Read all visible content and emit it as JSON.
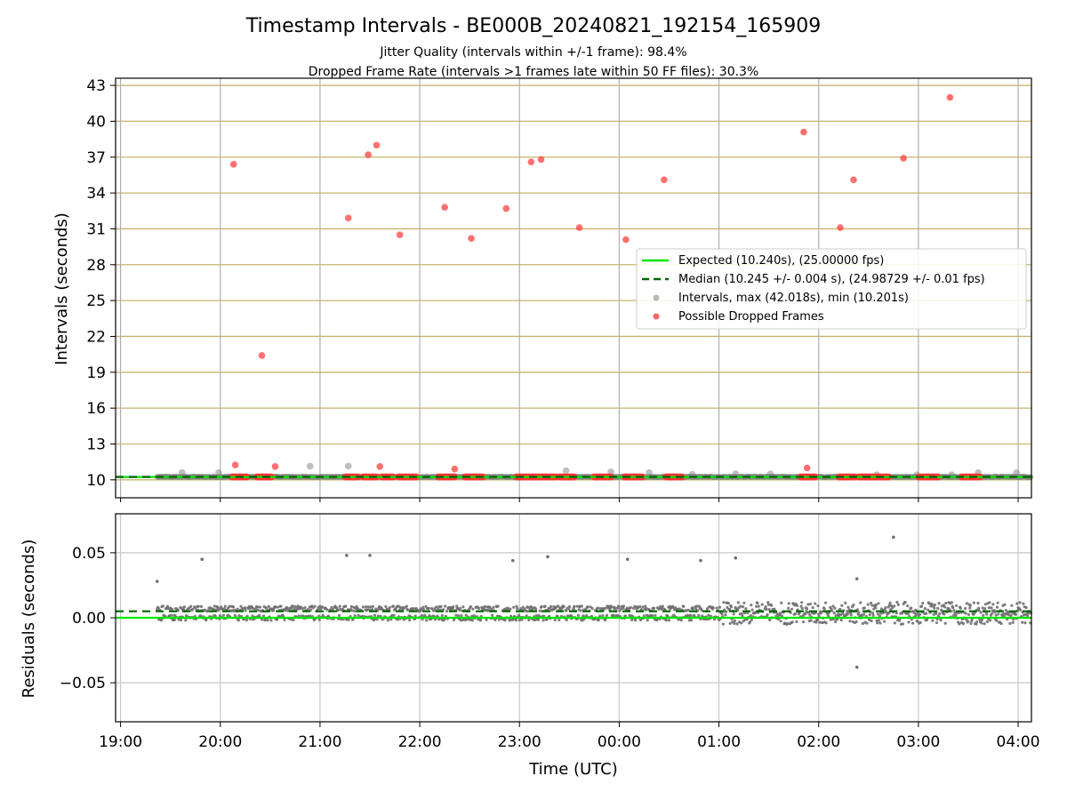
{
  "chart_data": [
    {
      "type": "scatter",
      "title": "Timestamp Intervals - BE000B_20240821_192154_165909",
      "subtitle_lines": [
        "Jitter Quality (intervals within +/-1 frame): 98.4%",
        "Dropped Frame Rate (intervals >1 frames late within 50 FF files): 30.3%"
      ],
      "xlabel": "",
      "ylabel": "Intervals (seconds)",
      "xlim": [
        "2024-08-21 18:57",
        "2024-08-22 04:08"
      ],
      "ylim": [
        8.5,
        43.6
      ],
      "yticks": [
        10,
        13,
        16,
        19,
        22,
        25,
        28,
        31,
        34,
        37,
        40,
        43
      ],
      "xticks": [
        "19:00",
        "20:00",
        "21:00",
        "22:00",
        "23:00",
        "00:00",
        "01:00",
        "02:00",
        "03:00",
        "04:00"
      ],
      "grid": true,
      "legend_position": "center-right",
      "legend": [
        "Expected (10.240s), (25.00000 fps)",
        "Median (10.245 +/- 0.004 s), (24.98729 +/- 0.01 fps)",
        "Intervals, max (42.018s), min (10.201s)",
        "Possible Dropped Frames"
      ],
      "expected_value": 10.24,
      "median_value": 10.245,
      "colors": {
        "expected": "#00e600",
        "median": "#006400",
        "intervals": "#808080",
        "dropped": "#ff3333",
        "hgrid": "#c8b46e",
        "vgrid": "#b0b0b0"
      },
      "series": [
        {
          "name": "Intervals, max (42.018s), min (10.201s)",
          "x": [
            "19:37",
            "19:59",
            "20:54",
            "21:17",
            "23:28",
            "23:55",
            "00:18",
            "00:44",
            "01:10",
            "01:31",
            "02:35",
            "02:59",
            "03:20",
            "03:36",
            "03:59"
          ],
          "y": [
            10.62,
            10.6,
            11.15,
            11.15,
            10.76,
            10.67,
            10.6,
            10.46,
            10.5,
            10.5,
            10.42,
            10.42,
            10.42,
            10.6,
            10.6
          ]
        },
        {
          "name": "Possible Dropped Frames",
          "x": [
            "20:08",
            "20:09",
            "20:25",
            "20:33",
            "21:17",
            "21:29",
            "21:34",
            "21:36",
            "21:48",
            "22:15",
            "22:21",
            "22:31",
            "22:52",
            "23:07",
            "23:13",
            "23:36",
            "00:04",
            "00:27",
            "01:51",
            "01:53",
            "02:13",
            "02:21",
            "02:51",
            "03:19"
          ],
          "y": [
            36.4,
            11.25,
            20.4,
            11.12,
            31.9,
            37.2,
            38.0,
            11.12,
            30.5,
            32.8,
            10.9,
            30.2,
            32.7,
            36.6,
            36.8,
            31.1,
            30.1,
            35.1,
            39.1,
            11.0,
            31.1,
            35.1,
            36.9,
            42.0
          ]
        },
        {
          "name": "Possible Dropped Frames",
          "x_ranges": [
            [
              "20:07",
              "20:16"
            ],
            [
              "20:22",
              "20:31"
            ],
            [
              "21:15",
              "21:23"
            ],
            [
              "21:26",
              "21:34"
            ],
            [
              "21:37",
              "21:44"
            ],
            [
              "21:47",
              "21:58"
            ],
            [
              "22:11",
              "22:21"
            ],
            [
              "22:27",
              "22:38"
            ],
            [
              "22:58",
              "23:10"
            ],
            [
              "23:11",
              "23:22"
            ],
            [
              "23:24",
              "23:33"
            ],
            [
              "23:45",
              "23:55"
            ],
            [
              "00:03",
              "00:14"
            ],
            [
              "00:28",
              "00:38"
            ],
            [
              "01:49",
              "01:58"
            ],
            [
              "02:12",
              "02:22"
            ],
            [
              "02:24",
              "02:33"
            ],
            [
              "02:34",
              "02:42"
            ],
            [
              "03:00",
              "03:12"
            ],
            [
              "03:26",
              "03:37"
            ]
          ],
          "y": 10.24
        }
      ]
    },
    {
      "type": "scatter",
      "title": "",
      "xlabel": "Time (UTC)",
      "ylabel": "Residuals (seconds)",
      "xlim": [
        "2024-08-21 18:57",
        "2024-08-22 04:08"
      ],
      "ylim": [
        -0.08,
        0.08
      ],
      "yticks": [
        0.05,
        0.0,
        -0.05
      ],
      "ytick_labels": [
        "0.05",
        "0.00",
        "−0.05"
      ],
      "xticks": [
        "19:00",
        "20:00",
        "21:00",
        "22:00",
        "23:00",
        "00:00",
        "01:00",
        "02:00",
        "03:00",
        "04:00"
      ],
      "grid": true,
      "expected_value": 0.0,
      "median_value": 0.005,
      "colors": {
        "points": "#707070",
        "expected": "#00e600",
        "median": "#006400",
        "grid": "#c8c8c8"
      },
      "series": [
        {
          "name": "",
          "x": [
            "19:22",
            "19:49",
            "21:16",
            "21:30",
            "22:56",
            "23:17",
            "00:05",
            "00:49",
            "01:10",
            "02:23",
            "02:45",
            "02:23"
          ],
          "y": [
            0.028,
            0.045,
            0.048,
            0.048,
            0.044,
            0.047,
            0.045,
            0.044,
            0.046,
            0.03,
            0.062,
            -0.038
          ]
        }
      ]
    }
  ]
}
